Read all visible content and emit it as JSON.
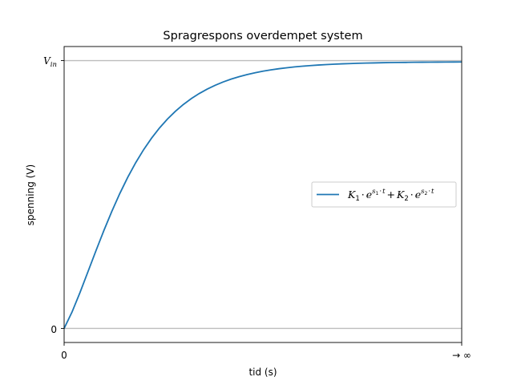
{
  "chart_data": {
    "type": "line",
    "title": "Spragrespons overdempet system",
    "xlabel": "tid (s)",
    "ylabel": "spenning (V)",
    "xlim": [
      0,
      1
    ],
    "ylim": [
      -0.05,
      1.0
    ],
    "x_ticks": [
      {
        "value": 0,
        "label": "0"
      },
      {
        "value": 1,
        "label": "→ ∞"
      }
    ],
    "y_ticks": [
      {
        "value": 0,
        "label": "0"
      },
      {
        "value": 0.95,
        "label": "V_in"
      }
    ],
    "y_tick_label_parts": {
      "base": "V",
      "sub": "in"
    },
    "reference_lines": [
      0,
      0.95
    ],
    "grid": false,
    "legend": {
      "placement": "center-right",
      "parts": {
        "k1": "K",
        "k1_sub": "1",
        "dot": "·",
        "e": "e",
        "exp1_s": "s",
        "exp1_sub": "1",
        "exp_t": "t",
        "plus": "+",
        "k2": "K",
        "k2_sub": "2",
        "exp2_s": "s",
        "exp2_sub": "2"
      }
    },
    "series": [
      {
        "color": "#1f77b4",
        "x": [
          0,
          0.02,
          0.04,
          0.06,
          0.08,
          0.1,
          0.12,
          0.14,
          0.16,
          0.18,
          0.2,
          0.22,
          0.24,
          0.26,
          0.28,
          0.3,
          0.32,
          0.34,
          0.36,
          0.38,
          0.4,
          0.42,
          0.44,
          0.46,
          0.48,
          0.5,
          0.52,
          0.54,
          0.56,
          0.58,
          0.6,
          0.62,
          0.64,
          0.66,
          0.68,
          0.7,
          0.72,
          0.74,
          0.76,
          0.78,
          0.8,
          0.82,
          0.84,
          0.86,
          0.88,
          0.9,
          0.92,
          0.94,
          0.96,
          0.98,
          1.0
        ],
        "values": [
          0.0,
          0.0585,
          0.1275,
          0.2012,
          0.2753,
          0.3473,
          0.4153,
          0.4784,
          0.536,
          0.5878,
          0.6341,
          0.6751,
          0.7112,
          0.7428,
          0.7704,
          0.7944,
          0.8153,
          0.8334,
          0.849,
          0.8626,
          0.8742,
          0.8843,
          0.893,
          0.9005,
          0.9069,
          0.9124,
          0.9171,
          0.9212,
          0.9247,
          0.9277,
          0.9302,
          0.9325,
          0.9344,
          0.936,
          0.9374,
          0.9386,
          0.9396,
          0.9405,
          0.9413,
          0.9419,
          0.9425,
          0.943,
          0.9434,
          0.9437,
          0.9441,
          0.9443,
          0.9445,
          0.9447,
          0.9449,
          0.945,
          0.9452
        ]
      }
    ]
  }
}
